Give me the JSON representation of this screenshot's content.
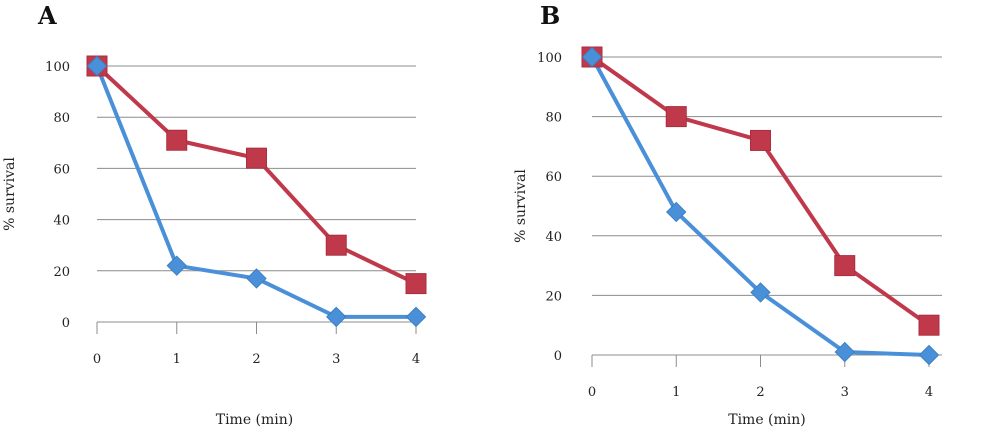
{
  "chart_data": [
    {
      "type": "line",
      "panel": "A",
      "xlabel": "Time (min)",
      "ylabel": "% survival",
      "x": [
        0,
        1,
        2,
        3,
        4
      ],
      "ylim": [
        0,
        100
      ],
      "yticks": [
        0,
        20,
        40,
        60,
        80,
        100
      ],
      "grid": true,
      "series": [
        {
          "color": "#4a90d9",
          "marker": "diamond",
          "values": [
            100,
            22,
            17,
            2,
            2
          ]
        },
        {
          "color": "#c0394b",
          "marker": "square",
          "values": [
            100,
            71,
            64,
            30,
            15
          ]
        }
      ]
    },
    {
      "type": "line",
      "panel": "B",
      "xlabel": "Time (min)",
      "ylabel": "% survival",
      "x": [
        0,
        1,
        2,
        3,
        4
      ],
      "ylim": [
        0,
        100
      ],
      "yticks": [
        0,
        20,
        40,
        60,
        80,
        100
      ],
      "grid": true,
      "series": [
        {
          "color": "#4a90d9",
          "marker": "diamond",
          "values": [
            100,
            48,
            21,
            1,
            0
          ]
        },
        {
          "color": "#c0394b",
          "marker": "square",
          "values": [
            100,
            80,
            72,
            30,
            10
          ]
        }
      ]
    }
  ]
}
